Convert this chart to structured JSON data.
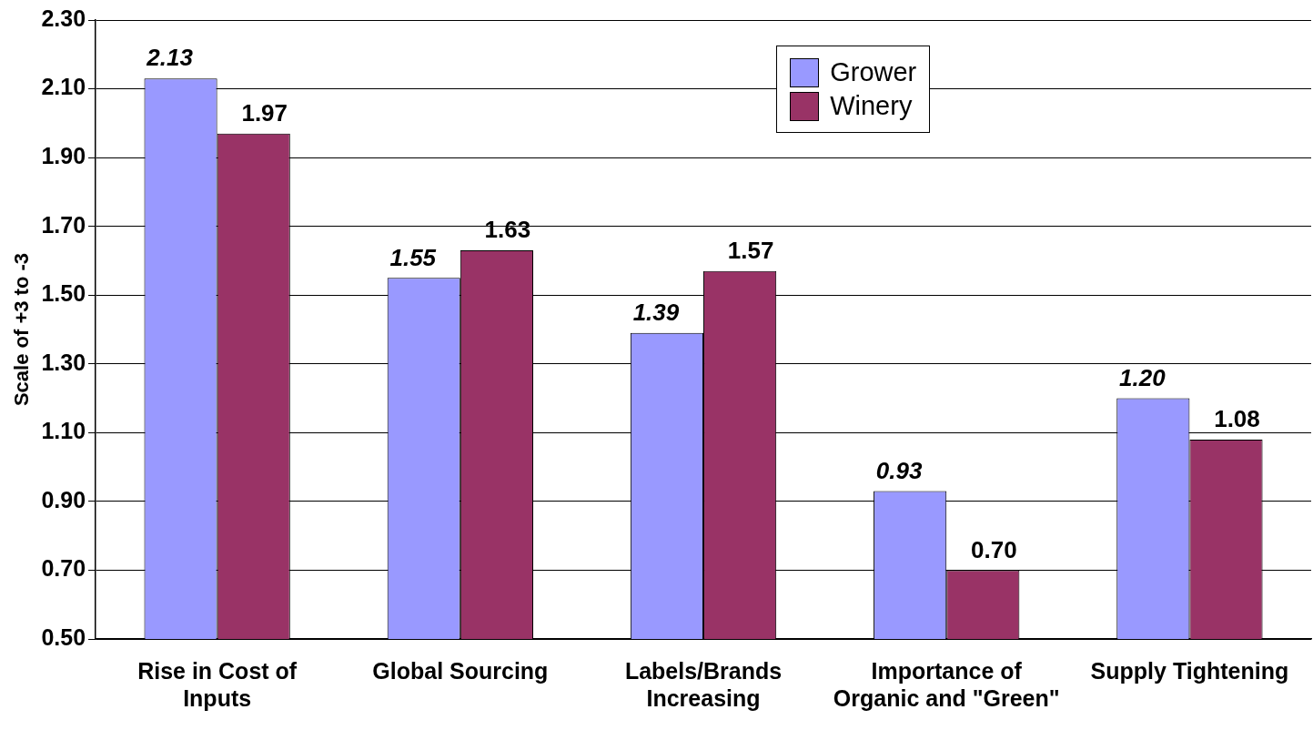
{
  "chart_data": {
    "type": "bar",
    "ylabel": "Scale of +3 to -3",
    "categories": [
      "Rise in Cost of Inputs",
      "Global Sourcing",
      "Labels/Brands Increasing",
      "Importance of Organic and \"Green\"",
      "Supply Tightening"
    ],
    "series": [
      {
        "name": "Grower",
        "color": "#9999ff",
        "values": [
          2.13,
          1.55,
          1.39,
          0.93,
          1.2
        ],
        "value_labels": [
          "2.13",
          "1.55",
          "1.39",
          "0.93",
          "1.20"
        ]
      },
      {
        "name": "Winery",
        "color": "#993366",
        "values": [
          1.97,
          1.63,
          1.57,
          0.7,
          1.08
        ],
        "value_labels": [
          "1.97",
          "1.63",
          "1.57",
          "0.70",
          "1.08"
        ]
      }
    ],
    "ylim": [
      0.5,
      2.3
    ],
    "yticks": [
      {
        "value": 0.5,
        "label": "0.50"
      },
      {
        "value": 0.7,
        "label": "0.70"
      },
      {
        "value": 0.9,
        "label": "0.90"
      },
      {
        "value": 1.1,
        "label": "1.10"
      },
      {
        "value": 1.3,
        "label": "1.30"
      },
      {
        "value": 1.5,
        "label": "1.50"
      },
      {
        "value": 1.7,
        "label": "1.70"
      },
      {
        "value": 1.9,
        "label": "1.90"
      },
      {
        "value": 2.1,
        "label": "2.10"
      },
      {
        "value": 2.3,
        "label": "2.30"
      }
    ],
    "grid": "y",
    "legend": "top right"
  }
}
